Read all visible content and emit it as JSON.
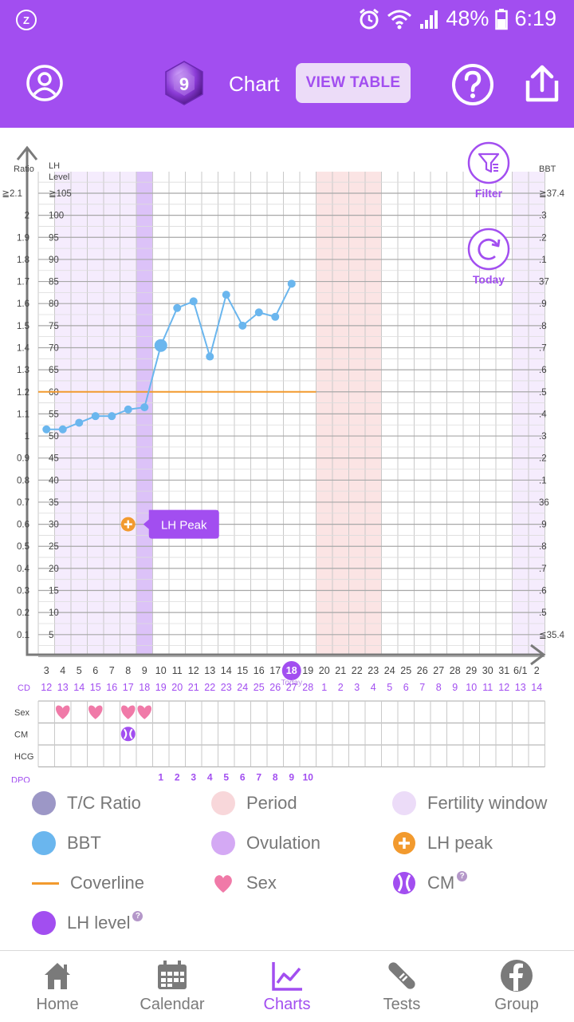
{
  "status_bar": {
    "battery": "48%",
    "time": "6:19",
    "icons": [
      "app-notification-icon",
      "alarm-icon",
      "wifi-icon",
      "signal-icon",
      "battery-icon"
    ]
  },
  "header": {
    "gem_number": "9",
    "title": "Chart",
    "view_table": "VIEW TABLE"
  },
  "chart_data": {
    "type": "line",
    "left_axis_title": "Ratio",
    "lh_axis_title": "LH\nLevel",
    "right_axis_title": "BBT",
    "ratio_ticks": [
      "≧2.1",
      "2",
      "1.9",
      "1.8",
      "1.7",
      "1.6",
      "1.5",
      "1.4",
      "1.3",
      "1.2",
      "1.1",
      "1",
      "0.9",
      "0.8",
      "0.7",
      "0.6",
      "0.5",
      "0.4",
      "0.3",
      "0.2",
      "0.1"
    ],
    "lh_ticks": [
      "≧105",
      "100",
      "95",
      "90",
      "85",
      "80",
      "75",
      "70",
      "65",
      "60",
      "55",
      "50",
      "45",
      "40",
      "35",
      "30",
      "25",
      "20",
      "15",
      "10",
      "5"
    ],
    "bbt_ticks": [
      "≧37.4",
      ".3",
      ".2",
      ".1",
      "37",
      ".9",
      ".8",
      ".7",
      ".6",
      ".5",
      ".4",
      ".3",
      ".2",
      ".1",
      "36",
      ".9",
      ".8",
      ".7",
      ".6",
      ".5",
      "≦35.4"
    ],
    "dates": [
      "3",
      "4",
      "5",
      "6",
      "7",
      "8",
      "9",
      "10",
      "11",
      "12",
      "13",
      "14",
      "15",
      "16",
      "17",
      "18",
      "19",
      "20",
      "21",
      "22",
      "23",
      "24",
      "25",
      "26",
      "27",
      "28",
      "29",
      "30",
      "31",
      "6/1",
      "2"
    ],
    "cd": [
      "12",
      "13",
      "14",
      "15",
      "16",
      "17",
      "18",
      "19",
      "20",
      "21",
      "22",
      "23",
      "24",
      "25",
      "26",
      "27",
      "28",
      "1",
      "2",
      "3",
      "4",
      "5",
      "6",
      "7",
      "8",
      "9",
      "10",
      "11",
      "12",
      "13",
      "14"
    ],
    "cd_label": "CD",
    "dpo_label": "DPO",
    "dpo": [
      "1",
      "2",
      "3",
      "4",
      "5",
      "6",
      "7",
      "8",
      "9",
      "10"
    ],
    "dpo_start_index": 7,
    "today_index": 15,
    "today_label": "Today",
    "row_labels": [
      "Sex",
      "CM",
      "HCG"
    ],
    "sex_days": [
      1,
      3,
      5,
      6
    ],
    "cm_days": [
      5
    ],
    "fertility_window": [
      1,
      5
    ],
    "ovulation_day": 6,
    "period_days": [
      17,
      20
    ],
    "fertility_window_2": [
      29,
      30
    ],
    "coverline_ratio": 1.2,
    "coverline_end_index": 16,
    "bbt_series": {
      "name": "BBT",
      "x_index": [
        0,
        1,
        2,
        3,
        4,
        5,
        6,
        7,
        8,
        9,
        10,
        11,
        12,
        13,
        14,
        15
      ],
      "values": [
        36.33,
        36.33,
        36.36,
        36.39,
        36.39,
        36.42,
        36.43,
        36.71,
        36.88,
        36.91,
        36.66,
        36.94,
        36.8,
        36.86,
        36.84,
        36.99
      ],
      "big_point_index": 7
    },
    "lh_peak": {
      "index": 5,
      "lh_level": 30,
      "label": "LH Peak"
    }
  },
  "buttons": {
    "filter": "Filter",
    "today": "Today"
  },
  "legend": {
    "items": [
      {
        "label": "T/C Ratio",
        "color": "#9c97c6"
      },
      {
        "label": "Period",
        "color": "#f8d7da"
      },
      {
        "label": "Fertility window",
        "color": "#ecdcf8"
      },
      {
        "label": "BBT",
        "color": "#6ab6ee"
      },
      {
        "label": "Ovulation",
        "color": "#d4a9f4"
      },
      {
        "label": "LH peak",
        "color": "#f29a2e"
      },
      {
        "label": "Coverline",
        "color": "#f29a2e"
      },
      {
        "label": "Sex",
        "color": "#f07aa8"
      },
      {
        "label": "CM",
        "color": "#a24ef0"
      },
      {
        "label": "LH level",
        "color": "#a24ef0"
      }
    ]
  },
  "nav": {
    "tabs": [
      {
        "label": "Home",
        "icon": "home-icon"
      },
      {
        "label": "Calendar",
        "icon": "calendar-icon"
      },
      {
        "label": "Charts",
        "icon": "charts-icon"
      },
      {
        "label": "Tests",
        "icon": "test-strip-icon"
      },
      {
        "label": "Group",
        "icon": "facebook-icon"
      }
    ],
    "active": 2
  },
  "colors": {
    "accent": "#a24ef0",
    "bbt": "#6ab6ee",
    "coverline": "#f29a2e"
  }
}
